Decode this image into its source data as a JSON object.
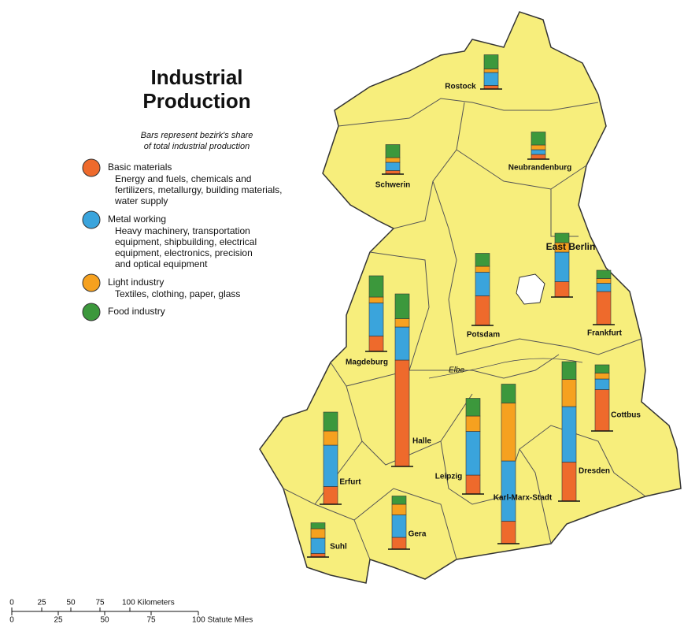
{
  "title_lines": [
    "Industrial",
    "Production"
  ],
  "subtitle_lines": [
    "Bars represent bezirk's share",
    "of total industrial production"
  ],
  "legend": [
    {
      "name": "Basic materials",
      "color": "#ee6a2c",
      "description": [
        "Energy and fuels, chemicals and",
        "fertilizers, metallurgy, building materials,",
        "water supply"
      ]
    },
    {
      "name": "Metal working",
      "color": "#3aa4dc",
      "description": [
        "Heavy machinery, transportation",
        "equipment, shipbuilding, electrical",
        "equipment, electronics, precision",
        "and optical equipment"
      ]
    },
    {
      "name": "Light industry",
      "color": "#f6a11f",
      "description": [
        "Textiles, clothing, paper, glass"
      ]
    },
    {
      "name": "Food industry",
      "color": "#3c983c",
      "description": []
    }
  ],
  "bezirke": [
    {
      "name": "Rostock",
      "values": [
        0.3,
        1.1,
        0.3,
        1.2
      ]
    },
    {
      "name": "Schwerin",
      "values": [
        0.3,
        0.7,
        0.4,
        1.1
      ]
    },
    {
      "name": "Neubrandenburg",
      "values": [
        0.4,
        0.4,
        0.4,
        1.1
      ]
    },
    {
      "name": "East Berlin",
      "values": [
        1.3,
        2.5,
        0.8,
        0.8
      ]
    },
    {
      "name": "Frankfurt",
      "values": [
        2.8,
        0.7,
        0.4,
        0.7
      ]
    },
    {
      "name": "Potsdam",
      "values": [
        2.5,
        2.0,
        0.5,
        1.1
      ]
    },
    {
      "name": "Magdeburg",
      "values": [
        1.3,
        2.8,
        0.5,
        1.8
      ]
    },
    {
      "name": "Halle",
      "values": [
        9.0,
        2.8,
        0.7,
        2.1
      ]
    },
    {
      "name": "Cottbus",
      "values": [
        3.5,
        0.9,
        0.5,
        0.7
      ]
    },
    {
      "name": "Dresden",
      "values": [
        3.3,
        4.7,
        2.3,
        1.5
      ]
    },
    {
      "name": "Karl-Marx-Stadt",
      "values": [
        1.9,
        5.1,
        4.9,
        1.6
      ]
    },
    {
      "name": "Leipzig",
      "values": [
        1.6,
        3.7,
        1.3,
        1.5
      ]
    },
    {
      "name": "Erfurt",
      "values": [
        1.5,
        3.5,
        1.2,
        1.6
      ]
    },
    {
      "name": "Gera",
      "values": [
        1.0,
        1.9,
        0.9,
        0.7
      ]
    },
    {
      "name": "Suhl",
      "values": [
        0.3,
        1.3,
        0.8,
        0.5
      ]
    }
  ],
  "river": "Elbe",
  "scale": {
    "km": [
      "0",
      "25",
      "50",
      "75",
      "100 Kilometers"
    ],
    "miles": [
      "0",
      "25",
      "50",
      "75",
      "100 Statute Miles"
    ]
  }
}
